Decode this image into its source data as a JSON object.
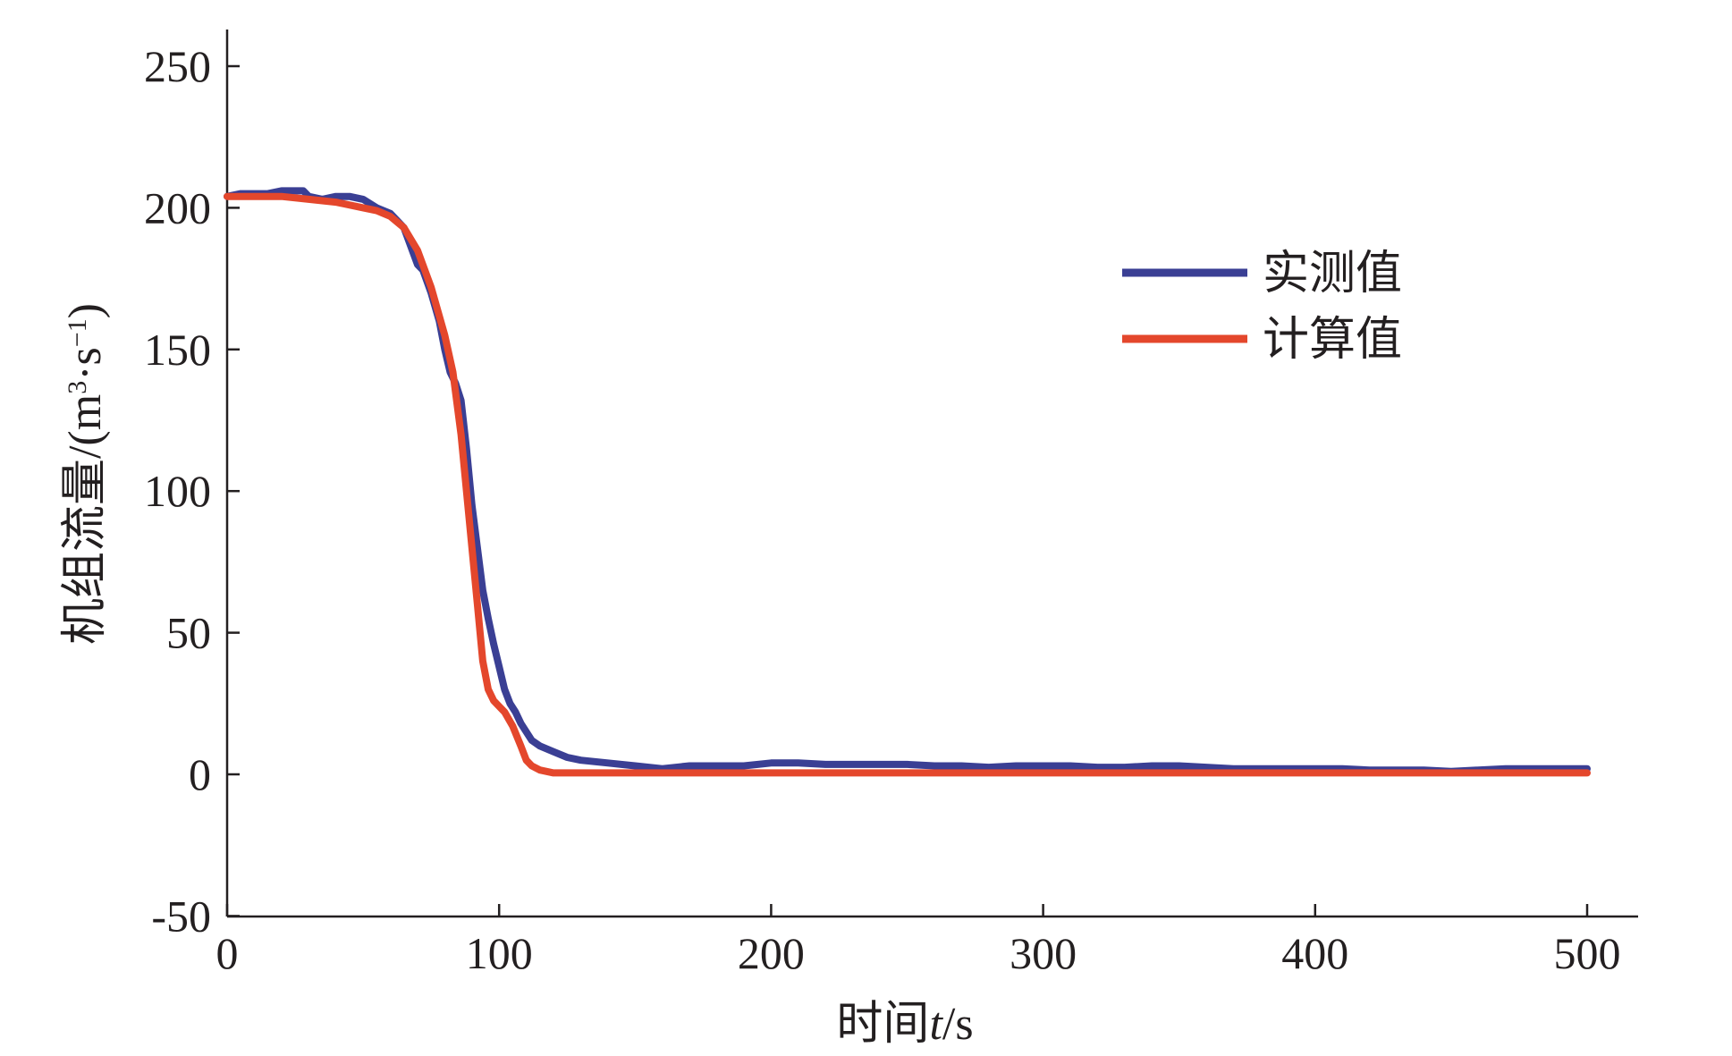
{
  "chart_data": {
    "type": "line",
    "title": "",
    "xlabel_text": "时间",
    "xlabel_var": "t",
    "xlabel_unit": "/s",
    "ylabel_text": "机组流量",
    "ylabel_unit_open": "/(m",
    "ylabel_sup1": "3",
    "ylabel_mid": "·s",
    "ylabel_sup2": "−1",
    "ylabel_close": ")",
    "xlim": [
      0,
      520
    ],
    "ylim": [
      -50,
      265
    ],
    "xticks": [
      0,
      100,
      200,
      300,
      400,
      500
    ],
    "yticks": [
      -50,
      0,
      50,
      100,
      150,
      200,
      250
    ],
    "xtick_labels": [
      "0",
      "100",
      "200",
      "300",
      "400",
      "500"
    ],
    "ytick_labels": [
      "-50",
      "0",
      "50",
      "100",
      "150",
      "200",
      "250"
    ],
    "grid": false,
    "legend_position": "top-right",
    "series": [
      {
        "name": "实测值",
        "color": "#3a3f94",
        "x": [
          0,
          5,
          10,
          15,
          20,
          25,
          28,
          30,
          35,
          40,
          45,
          50,
          55,
          60,
          65,
          70,
          72,
          75,
          78,
          80,
          82,
          84,
          86,
          88,
          90,
          92,
          94,
          96,
          98,
          100,
          102,
          104,
          106,
          108,
          110,
          112,
          115,
          120,
          125,
          130,
          140,
          150,
          160,
          170,
          180,
          190,
          200,
          210,
          220,
          230,
          240,
          250,
          260,
          270,
          280,
          290,
          300,
          310,
          320,
          330,
          340,
          350,
          360,
          370,
          380,
          390,
          400,
          410,
          420,
          430,
          440,
          450,
          460,
          470,
          480,
          490,
          500
        ],
        "y": [
          204,
          205,
          205,
          205,
          206,
          206,
          206,
          204,
          203,
          204,
          204,
          203,
          200,
          198,
          193,
          180,
          178,
          170,
          160,
          150,
          142,
          138,
          132,
          115,
          95,
          80,
          65,
          55,
          46,
          38,
          30,
          25,
          22,
          18,
          15,
          12,
          10,
          8,
          6,
          5,
          4,
          3,
          2,
          3,
          3,
          3,
          4,
          4,
          3.5,
          3.5,
          3.5,
          3.5,
          3,
          3,
          2.5,
          3,
          3,
          3,
          2.5,
          2.5,
          3,
          3,
          2.5,
          2,
          2,
          2,
          2,
          2,
          1.5,
          1.5,
          1.5,
          1,
          1.5,
          2,
          2,
          2,
          2
        ]
      },
      {
        "name": "计算值",
        "color": "#e4472c",
        "x": [
          0,
          10,
          20,
          30,
          40,
          50,
          55,
          60,
          65,
          70,
          75,
          80,
          83,
          86,
          88,
          90,
          92,
          94,
          96,
          98,
          100,
          102,
          105,
          108,
          110,
          112,
          115,
          120,
          125,
          130,
          150,
          200,
          250,
          300,
          350,
          400,
          450,
          500
        ],
        "y": [
          204,
          204,
          204,
          203,
          202,
          200,
          199,
          197,
          193,
          185,
          172,
          155,
          142,
          120,
          100,
          80,
          60,
          40,
          30,
          26,
          24,
          22,
          17,
          10,
          5,
          3,
          1.5,
          0.5,
          0.5,
          0.5,
          0.5,
          0.5,
          0.5,
          0.5,
          0.5,
          0.5,
          0.5,
          0.5
        ]
      }
    ]
  }
}
